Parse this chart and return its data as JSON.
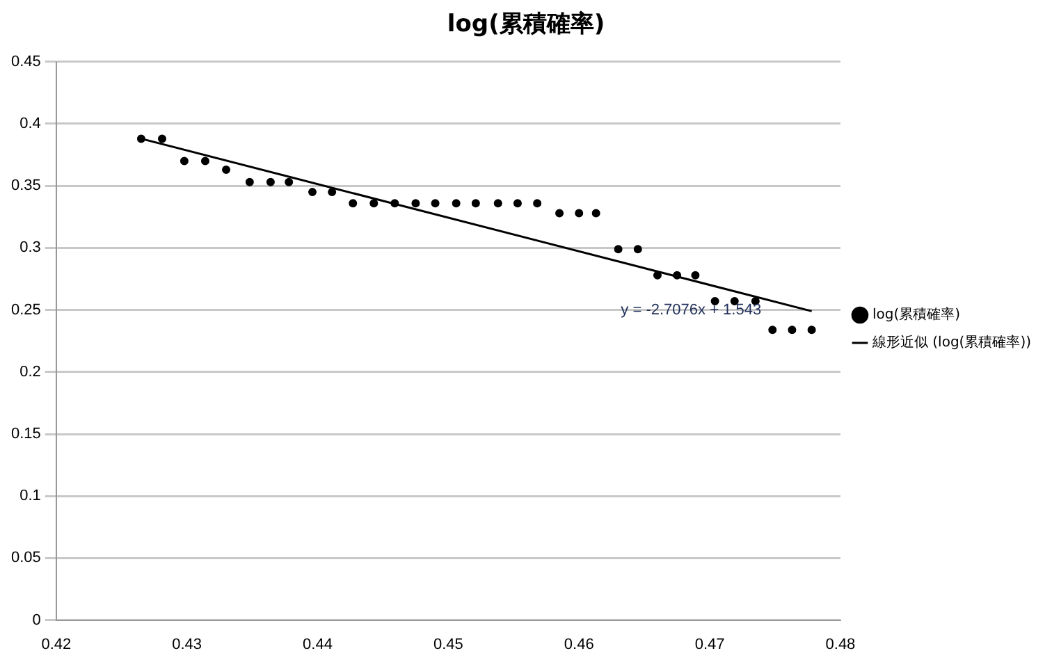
{
  "chart_data": {
    "type": "scatter",
    "title": "log(累積確率)",
    "series": [
      {
        "name": "log(累積確率)",
        "marker": "circle",
        "color": "#000000",
        "x": [
          0.4265,
          0.4281,
          0.4298,
          0.4314,
          0.433,
          0.4348,
          0.4364,
          0.4378,
          0.4396,
          0.4411,
          0.4427,
          0.4443,
          0.4459,
          0.4475,
          0.449,
          0.4506,
          0.4521,
          0.4538,
          0.4553,
          0.4568,
          0.4585,
          0.46,
          0.4613,
          0.463,
          0.4645,
          0.466,
          0.4675,
          0.4689,
          0.4704,
          0.4719,
          0.4735,
          0.4748,
          0.4763,
          0.4778
        ],
        "values": [
          0.388,
          0.388,
          0.37,
          0.37,
          0.363,
          0.353,
          0.353,
          0.353,
          0.345,
          0.345,
          0.336,
          0.336,
          0.336,
          0.336,
          0.336,
          0.336,
          0.336,
          0.336,
          0.336,
          0.336,
          0.328,
          0.328,
          0.328,
          0.299,
          0.299,
          0.278,
          0.278,
          0.278,
          0.257,
          0.257,
          0.257,
          0.234,
          0.234,
          0.234
        ]
      },
      {
        "name": "線形近似 (log(累積確率))",
        "type": "line",
        "color": "#000000",
        "x": [
          0.4265,
          0.4778
        ],
        "values": [
          0.388,
          0.249
        ]
      }
    ],
    "annotations": [
      "y = -2.7076x + 1.543"
    ],
    "xlim": [
      0.42,
      0.48
    ],
    "xticks": [
      0.42,
      0.43,
      0.44,
      0.45,
      0.46,
      0.47,
      0.48
    ],
    "ylim": [
      0,
      0.45
    ],
    "yticks": [
      0,
      0.05,
      0.1,
      0.15,
      0.2,
      0.25,
      0.3,
      0.35,
      0.4,
      0.45
    ],
    "grid": "y",
    "legend": "right",
    "line_style": "solid"
  }
}
